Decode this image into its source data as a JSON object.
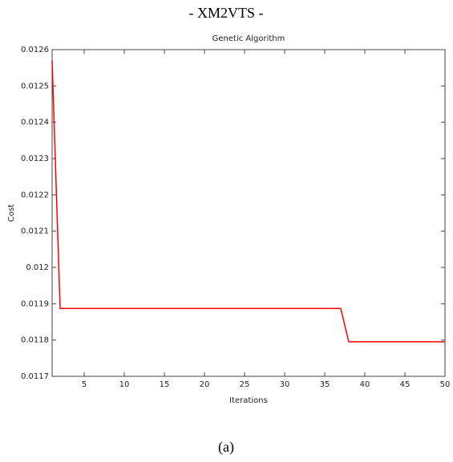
{
  "header": "- XM2VTS -",
  "caption": "(a)",
  "chart_data": {
    "type": "line",
    "title": "Genetic Algorithm",
    "x_label": "Iterations",
    "y_label": "Cost",
    "x": [
      1,
      2,
      37,
      38,
      50
    ],
    "series": [
      {
        "name": "Cost",
        "color": "#ff0000",
        "values": [
          0.01257,
          0.011887,
          0.011887,
          0.011795,
          0.011795
        ]
      }
    ],
    "xlim": [
      1,
      50
    ],
    "xticks": [
      5,
      10,
      15,
      20,
      25,
      30,
      35,
      40,
      45,
      50
    ],
    "ylim": [
      0.0117,
      0.0126
    ],
    "yticks": [
      0.0117,
      0.0118,
      0.0119,
      0.012,
      0.0121,
      0.0122,
      0.0123,
      0.0124,
      0.0125,
      0.0126
    ],
    "grid": false
  }
}
